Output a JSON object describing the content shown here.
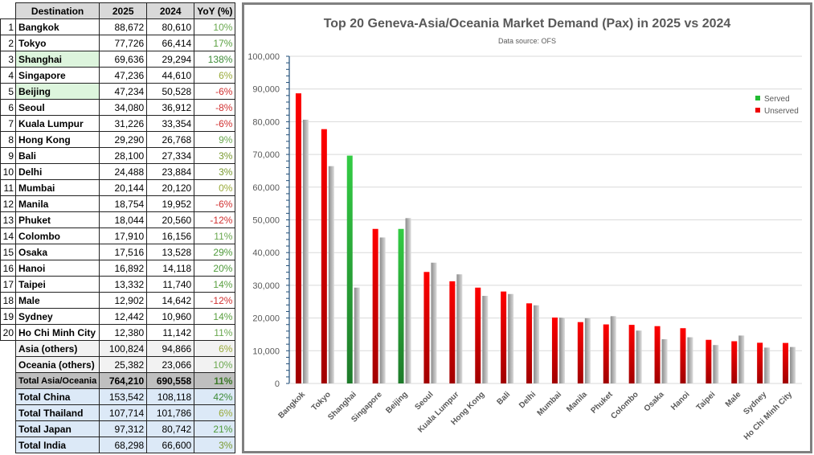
{
  "table": {
    "headers": [
      "Destination",
      "2025",
      "2024",
      "YoY (%)"
    ],
    "rows": [
      {
        "rank": "1",
        "dest": "Bangkok",
        "y2025": "88,672",
        "y2024": "80,610",
        "yoy": "10%",
        "color": "#6aa84f",
        "served": false
      },
      {
        "rank": "2",
        "dest": "Tokyo",
        "y2025": "77,726",
        "y2024": "66,414",
        "yoy": "17%",
        "color": "#5aa040",
        "served": false
      },
      {
        "rank": "3",
        "dest": "Shanghai",
        "y2025": "69,636",
        "y2024": "29,294",
        "yoy": "138%",
        "color": "#3d8b37",
        "served": true
      },
      {
        "rank": "4",
        "dest": "Singapore",
        "y2025": "47,236",
        "y2024": "44,610",
        "yoy": "6%",
        "color": "#9aab3a",
        "served": false
      },
      {
        "rank": "5",
        "dest": "Beijing",
        "y2025": "47,234",
        "y2024": "50,528",
        "yoy": "-6%",
        "color": "#d03030",
        "served": true
      },
      {
        "rank": "6",
        "dest": "Seoul",
        "y2025": "34,080",
        "y2024": "36,912",
        "yoy": "-8%",
        "color": "#d03030",
        "served": false
      },
      {
        "rank": "7",
        "dest": "Kuala Lumpur",
        "y2025": "31,226",
        "y2024": "33,354",
        "yoy": "-6%",
        "color": "#d03030",
        "served": false
      },
      {
        "rank": "8",
        "dest": "Hong Kong",
        "y2025": "29,290",
        "y2024": "26,768",
        "yoy": "9%",
        "color": "#6aa84f",
        "served": false
      },
      {
        "rank": "9",
        "dest": "Bali",
        "y2025": "28,100",
        "y2024": "27,334",
        "yoy": "3%",
        "color": "#7a9a30",
        "served": false
      },
      {
        "rank": "10",
        "dest": "Delhi",
        "y2025": "24,488",
        "y2024": "23,884",
        "yoy": "3%",
        "color": "#7a9a30",
        "served": false
      },
      {
        "rank": "11",
        "dest": "Mumbai",
        "y2025": "20,144",
        "y2024": "20,120",
        "yoy": "0%",
        "color": "#9aab3a",
        "served": false
      },
      {
        "rank": "12",
        "dest": "Manila",
        "y2025": "18,754",
        "y2024": "19,952",
        "yoy": "-6%",
        "color": "#d03030",
        "served": false
      },
      {
        "rank": "13",
        "dest": "Phuket",
        "y2025": "18,044",
        "y2024": "20,560",
        "yoy": "-12%",
        "color": "#d03030",
        "served": false
      },
      {
        "rank": "14",
        "dest": "Colombo",
        "y2025": "17,910",
        "y2024": "16,156",
        "yoy": "11%",
        "color": "#6aa84f",
        "served": false
      },
      {
        "rank": "15",
        "dest": "Osaka",
        "y2025": "17,516",
        "y2024": "13,528",
        "yoy": "29%",
        "color": "#4e9a3a",
        "served": false
      },
      {
        "rank": "16",
        "dest": "Hanoi",
        "y2025": "16,892",
        "y2024": "14,118",
        "yoy": "20%",
        "color": "#4e9a3a",
        "served": false
      },
      {
        "rank": "17",
        "dest": "Taipei",
        "y2025": "13,332",
        "y2024": "11,740",
        "yoy": "14%",
        "color": "#5aa040",
        "served": false
      },
      {
        "rank": "18",
        "dest": "Male",
        "y2025": "12,902",
        "y2024": "14,642",
        "yoy": "-12%",
        "color": "#d03030",
        "served": false
      },
      {
        "rank": "19",
        "dest": "Sydney",
        "y2025": "12,442",
        "y2024": "10,960",
        "yoy": "14%",
        "color": "#5aa040",
        "served": false
      },
      {
        "rank": "20",
        "dest": "Ho Chi Minh City",
        "y2025": "12,380",
        "y2024": "11,142",
        "yoy": "11%",
        "color": "#6aa84f",
        "served": false
      }
    ],
    "others": [
      {
        "dest": "Asia (others)",
        "y2025": "100,824",
        "y2024": "94,866",
        "yoy": "6%",
        "color": "#9aab3a"
      },
      {
        "dest": "Oceania (others)",
        "y2025": "25,382",
        "y2024": "23,066",
        "yoy": "10%",
        "color": "#6aa84f"
      }
    ],
    "total": {
      "dest": "Total Asia/Oceania",
      "y2025": "764,210",
      "y2024": "690,558",
      "yoy": "11%",
      "color": "#3d7a2a"
    },
    "countries": [
      {
        "dest": "Total China",
        "y2025": "153,542",
        "y2024": "108,118",
        "yoy": "42%",
        "color": "#3d8b37"
      },
      {
        "dest": "Total Thailand",
        "y2025": "107,714",
        "y2024": "101,786",
        "yoy": "6%",
        "color": "#9aab3a"
      },
      {
        "dest": "Total Japan",
        "y2025": "97,312",
        "y2024": "80,742",
        "yoy": "21%",
        "color": "#4e9a3a"
      },
      {
        "dest": "Total India",
        "y2025": "68,298",
        "y2024": "66,600",
        "yoy": "3%",
        "color": "#7a9a30"
      }
    ]
  },
  "chart_data": {
    "type": "bar",
    "title": "Top 20 Geneva-Asia/Oceania Market Demand (Pax) in 2025 vs 2024",
    "subtitle": "Data source: OFS",
    "categories": [
      "Bangkok",
      "Tokyo",
      "Shanghai",
      "Singapore",
      "Beijing",
      "Seoul",
      "Kuala Lumpur",
      "Hong Kong",
      "Bali",
      "Delhi",
      "Mumbai",
      "Manila",
      "Phuket",
      "Colombo",
      "Osaka",
      "Hanoi",
      "Taipei",
      "Male",
      "Sydney",
      "Ho Chi Minh City"
    ],
    "series": [
      {
        "name": "2025",
        "values": [
          88672,
          77726,
          69636,
          47236,
          47234,
          34080,
          31226,
          29290,
          28100,
          24488,
          20144,
          18754,
          18044,
          17910,
          17516,
          16892,
          13332,
          12902,
          12442,
          12380
        ]
      },
      {
        "name": "2024",
        "values": [
          80610,
          66414,
          29294,
          44610,
          50528,
          36912,
          33354,
          26768,
          27334,
          23884,
          20120,
          19952,
          20560,
          16156,
          13528,
          14118,
          11740,
          14642,
          10960,
          11142
        ]
      }
    ],
    "served": [
      false,
      false,
      true,
      false,
      true,
      false,
      false,
      false,
      false,
      false,
      false,
      false,
      false,
      false,
      false,
      false,
      false,
      false,
      false,
      false
    ],
    "ylim": [
      0,
      100000
    ],
    "yticks": [
      "0",
      "10,000",
      "20,000",
      "30,000",
      "40,000",
      "50,000",
      "60,000",
      "70,000",
      "80,000",
      "90,000",
      "100,000"
    ],
    "legend": [
      {
        "label": "Served",
        "color": "#22bb33"
      },
      {
        "label": "Unserved",
        "color": "#ee0000"
      }
    ],
    "legend_position": "right",
    "grid": true
  }
}
